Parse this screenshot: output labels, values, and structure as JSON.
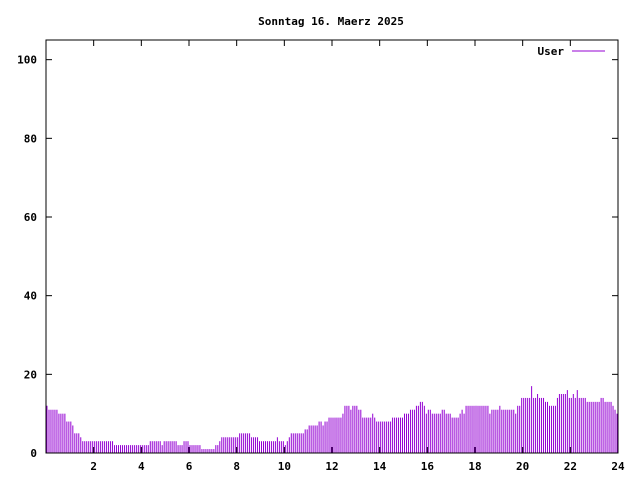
{
  "chart_data": {
    "type": "bar",
    "title": "Sonntag 16. Maerz 2025",
    "xlabel": "",
    "ylabel": "",
    "xlim": [
      0,
      24
    ],
    "ylim": [
      0,
      105
    ],
    "x_ticks": [
      "2",
      "4",
      "6",
      "8",
      "10",
      "12",
      "14",
      "16",
      "18",
      "20",
      "22",
      "24"
    ],
    "y_ticks": [
      "0",
      "20",
      "40",
      "60",
      "80",
      "100"
    ],
    "grid": false,
    "legend_position": "top-right",
    "bin_minutes": 5,
    "series": [
      {
        "name": "User",
        "color": "#9400d3",
        "values": [
          12,
          11,
          11,
          11,
          11,
          11,
          10,
          10,
          10,
          10,
          8,
          8,
          8,
          7,
          5,
          5,
          5,
          4,
          3,
          3,
          3,
          3,
          3,
          3,
          3,
          3,
          3,
          3,
          3,
          3,
          3,
          3,
          3,
          3,
          2,
          2,
          2,
          2,
          2,
          2,
          2,
          2,
          2,
          2,
          2,
          2,
          2,
          2,
          2,
          2,
          2,
          2,
          3,
          3,
          3,
          3,
          3,
          3,
          2,
          3,
          3,
          3,
          3,
          3,
          3,
          3,
          2,
          2,
          2,
          3,
          3,
          3,
          2,
          2,
          2,
          2,
          2,
          2,
          1,
          1,
          1,
          1,
          1,
          1,
          1,
          2,
          2,
          3,
          4,
          4,
          4,
          4,
          4,
          4,
          4,
          4,
          4,
          5,
          5,
          5,
          5,
          5,
          5,
          4,
          4,
          4,
          4,
          3,
          3,
          3,
          3,
          3,
          3,
          3,
          3,
          3,
          4,
          3,
          3,
          3,
          2,
          3,
          4,
          5,
          5,
          5,
          5,
          5,
          5,
          5,
          6,
          6,
          7,
          7,
          7,
          7,
          7,
          8,
          8,
          7,
          8,
          8,
          9,
          9,
          9,
          9,
          9,
          9,
          9,
          10,
          12,
          12,
          12,
          11,
          12,
          12,
          12,
          11,
          11,
          9,
          9,
          9,
          9,
          9,
          10,
          9,
          8,
          8,
          8,
          8,
          8,
          8,
          8,
          8,
          9,
          9,
          9,
          9,
          9,
          9,
          10,
          10,
          10,
          11,
          11,
          11,
          12,
          12,
          13,
          13,
          12,
          10,
          11,
          11,
          10,
          10,
          10,
          10,
          10,
          11,
          11,
          10,
          10,
          10,
          9,
          9,
          9,
          9,
          10,
          11,
          10,
          12,
          12,
          12,
          12,
          12,
          12,
          12,
          12,
          12,
          12,
          12,
          12,
          10,
          11,
          11,
          11,
          11,
          12,
          11,
          11,
          11,
          11,
          11,
          11,
          11,
          10,
          12,
          12,
          14,
          14,
          14,
          14,
          14,
          17,
          14,
          14,
          15,
          14,
          14,
          14,
          13,
          13,
          12,
          12,
          12,
          12,
          14,
          15,
          15,
          15,
          15,
          16,
          14,
          14,
          15,
          14,
          16,
          14,
          14,
          14,
          14,
          13,
          13,
          13,
          13,
          13,
          13,
          13,
          14,
          14,
          13,
          13,
          13,
          13,
          12,
          11,
          10
        ]
      }
    ]
  }
}
